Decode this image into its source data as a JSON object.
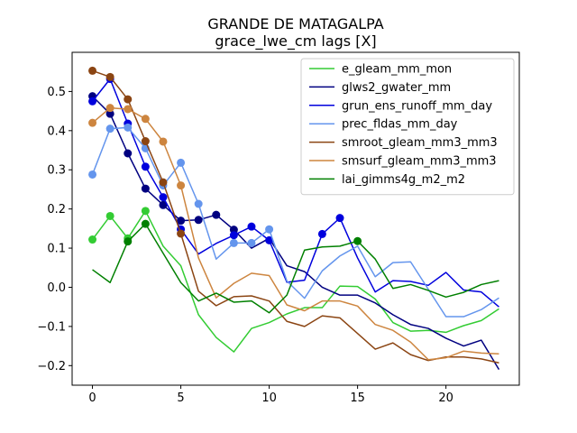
{
  "chart_data": {
    "type": "line",
    "title": "GRANDE DE MATAGALPA",
    "subtitle": "grace_lwe_cm lags [X]",
    "xlabel": "",
    "ylabel": "",
    "xlim": [
      -1.15,
      24.15
    ],
    "ylim": [
      -0.25,
      0.6
    ],
    "xticks": [
      0,
      5,
      10,
      15,
      20
    ],
    "yticks": [
      -0.2,
      -0.1,
      0.0,
      0.1,
      0.2,
      0.3,
      0.4,
      0.5
    ],
    "ytick_labels": [
      "−0.2",
      "−0.1",
      "0.0",
      "0.1",
      "0.2",
      "0.3",
      "0.4",
      "0.5"
    ],
    "grid": false,
    "legend_position": "top-right",
    "x": [
      0,
      1,
      2,
      3,
      4,
      5,
      6,
      7,
      8,
      9,
      10,
      11,
      12,
      13,
      14,
      15,
      16,
      17,
      18,
      19,
      20,
      21,
      22,
      23
    ],
    "series": [
      {
        "name": "e_gleam_mm_mon",
        "color": "#33cc33",
        "values": [
          0.122,
          0.182,
          0.125,
          0.195,
          0.105,
          0.055,
          -0.07,
          -0.128,
          -0.165,
          -0.105,
          -0.09,
          -0.068,
          -0.052,
          -0.052,
          0.003,
          0.002,
          -0.03,
          -0.09,
          -0.112,
          -0.11,
          -0.115,
          -0.098,
          -0.085,
          -0.055
        ],
        "markers": [
          0,
          1,
          2,
          3
        ]
      },
      {
        "name": "glws2_gwater_mm",
        "color": "#000080",
        "values": [
          0.488,
          0.443,
          0.342,
          0.252,
          0.21,
          0.17,
          0.172,
          0.185,
          0.147,
          0.1,
          0.125,
          0.055,
          0.04,
          0.0,
          -0.02,
          -0.02,
          -0.04,
          -0.07,
          -0.095,
          -0.105,
          -0.13,
          -0.15,
          -0.135,
          -0.21
        ],
        "markers": [
          0,
          1,
          2,
          3,
          4,
          5,
          6,
          7,
          8
        ]
      },
      {
        "name": "grun_ens_runoff_mm_day",
        "color": "#0000dd",
        "values": [
          0.475,
          0.532,
          0.418,
          0.308,
          0.23,
          0.148,
          0.085,
          0.112,
          0.133,
          0.155,
          0.12,
          0.013,
          0.018,
          0.136,
          0.177,
          0.075,
          -0.012,
          0.017,
          0.015,
          0.005,
          0.038,
          -0.007,
          -0.012,
          -0.05
        ],
        "markers": [
          0,
          1,
          2,
          3,
          4,
          5,
          8,
          9,
          10,
          13,
          14
        ]
      },
      {
        "name": "prec_fldas_mm_day",
        "color": "#6495ed",
        "values": [
          0.288,
          0.405,
          0.408,
          0.355,
          0.26,
          0.318,
          0.213,
          0.072,
          0.113,
          0.113,
          0.148,
          0.016,
          -0.028,
          0.042,
          0.08,
          0.105,
          0.027,
          0.063,
          0.065,
          -0.005,
          -0.075,
          -0.075,
          -0.057,
          -0.027
        ],
        "markers": [
          0,
          1,
          2,
          3,
          4,
          5,
          6,
          8,
          9,
          10
        ]
      },
      {
        "name": "smroot_gleam_mm3_mm3",
        "color": "#8b4513",
        "values": [
          0.553,
          0.537,
          0.48,
          0.373,
          0.268,
          0.137,
          -0.01,
          -0.047,
          -0.024,
          -0.022,
          -0.035,
          -0.087,
          -0.1,
          -0.073,
          -0.078,
          -0.118,
          -0.158,
          -0.142,
          -0.172,
          -0.187,
          -0.178,
          -0.178,
          -0.183,
          -0.193
        ],
        "markers": [
          0,
          1,
          2,
          3,
          4,
          5
        ]
      },
      {
        "name": "smsurf_gleam_mm3_mm3",
        "color": "#cd853f",
        "values": [
          0.42,
          0.458,
          0.455,
          0.43,
          0.372,
          0.26,
          0.075,
          -0.027,
          0.01,
          0.036,
          0.03,
          -0.045,
          -0.06,
          -0.035,
          -0.035,
          -0.048,
          -0.095,
          -0.11,
          -0.14,
          -0.185,
          -0.18,
          -0.163,
          -0.168,
          -0.17
        ],
        "markers": [
          0,
          1,
          2,
          3,
          4,
          5
        ]
      },
      {
        "name": "lai_gimms4g_m2_m2",
        "color": "#008000",
        "values": [
          0.045,
          0.012,
          0.117,
          0.162,
          0.087,
          0.012,
          -0.035,
          -0.015,
          -0.038,
          -0.035,
          -0.065,
          -0.02,
          0.095,
          0.103,
          0.105,
          0.118,
          0.072,
          -0.003,
          0.007,
          -0.008,
          -0.025,
          -0.013,
          0.007,
          0.017
        ],
        "markers": [
          2,
          3,
          15
        ]
      }
    ]
  }
}
